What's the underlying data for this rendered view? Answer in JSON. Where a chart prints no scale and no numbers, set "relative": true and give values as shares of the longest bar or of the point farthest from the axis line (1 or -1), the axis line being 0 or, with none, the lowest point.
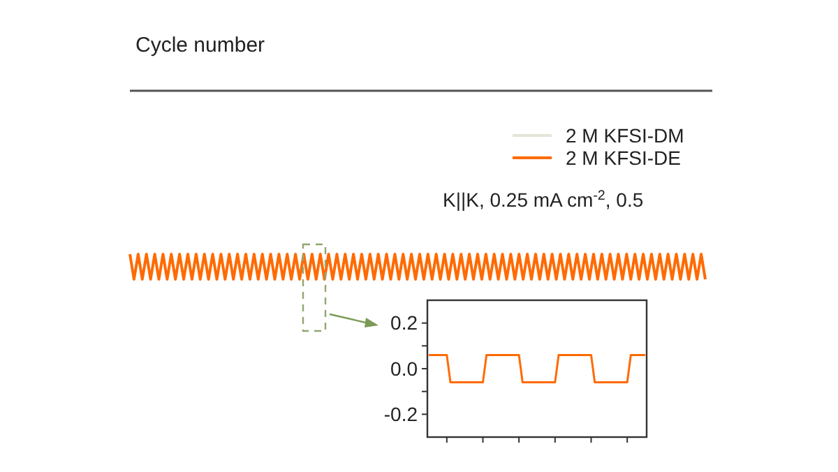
{
  "chart_data": [
    {
      "type": "other",
      "annotations": [
        "Cycle number"
      ]
    },
    {
      "type": "line",
      "relative": true,
      "legend": "top right",
      "annotations": [
        "K||K, 0.25 mA cm$^{-2}$, 0.5"
      ],
      "categories": [
        null,
        null,
        null,
        null,
        null,
        null,
        null,
        null,
        null,
        null,
        null,
        null,
        null,
        null,
        null,
        null,
        null,
        null,
        null,
        null,
        null,
        null,
        null,
        null,
        null,
        null,
        null,
        null,
        null,
        null,
        null,
        null,
        null,
        null,
        null,
        null,
        null,
        null,
        null,
        null,
        null,
        null,
        null,
        null,
        null,
        null,
        null,
        null,
        null,
        null,
        null,
        null,
        null,
        null,
        null,
        null,
        null,
        null,
        null,
        null,
        null,
        null,
        null,
        null,
        null,
        null,
        null,
        null,
        null,
        null,
        null,
        null,
        null,
        null,
        null,
        null,
        null,
        null,
        null,
        null,
        null,
        null,
        null,
        null,
        null,
        null,
        null,
        null,
        null,
        null,
        null,
        null,
        null,
        null,
        null,
        null,
        null,
        null,
        null,
        null,
        null,
        null,
        null,
        null,
        null,
        null,
        null,
        null,
        null,
        null,
        null,
        null,
        null,
        null,
        null,
        null,
        null,
        null,
        null,
        null,
        null,
        null,
        null,
        null,
        null,
        null,
        null,
        null,
        null,
        null,
        null,
        null,
        null,
        null,
        null,
        null,
        null,
        null,
        null,
        null
      ],
      "series": [
        {
          "name": "2 M KFSI-DM",
          "color": "#e2e6d8",
          "values": [
            null,
            null,
            null,
            null,
            null,
            null,
            null,
            null,
            null,
            null,
            null,
            null,
            null,
            null,
            null,
            null,
            null,
            null,
            null,
            null,
            null,
            null,
            null,
            null,
            null,
            null,
            null,
            null,
            null,
            null,
            null,
            null,
            null,
            null,
            null,
            null,
            null,
            null,
            null,
            null,
            null,
            null,
            null,
            null,
            null,
            null,
            null,
            null,
            null,
            null,
            null,
            null,
            null,
            null,
            null,
            null,
            null,
            null,
            null,
            null,
            null,
            null,
            null,
            null,
            null,
            null,
            null,
            null,
            null,
            null,
            null,
            null,
            null,
            null,
            null,
            null,
            null,
            null,
            null,
            null,
            null,
            null,
            null,
            null,
            null,
            null,
            null,
            null,
            null,
            null,
            null,
            null,
            null,
            null,
            null,
            null,
            null,
            null,
            null,
            null,
            null,
            null,
            null,
            null,
            null,
            null,
            null,
            null,
            null,
            null,
            null,
            null,
            null,
            null,
            null,
            null,
            null,
            null,
            null,
            null,
            null,
            null,
            null,
            null,
            null,
            null,
            null,
            null,
            null,
            null,
            null,
            null,
            null,
            null,
            null,
            null,
            null,
            null,
            null,
            null
          ]
        },
        {
          "name": "2 M KFSI-DE",
          "color": "#ff6a00",
          "values": [
            1,
            0,
            1,
            0,
            1,
            0,
            1,
            0,
            1,
            0,
            1,
            0,
            1,
            0,
            1,
            0,
            1,
            0,
            1,
            0,
            1,
            0,
            1,
            0,
            1,
            0,
            1,
            0,
            1,
            0,
            1,
            0,
            1,
            0,
            1,
            0,
            1,
            0,
            1,
            0,
            1,
            0,
            1,
            0,
            1,
            0,
            1,
            0,
            1,
            0,
            1,
            0,
            1,
            0,
            1,
            0,
            1,
            0,
            1,
            0,
            1,
            0,
            1,
            0,
            1,
            0,
            1,
            0,
            1,
            0,
            1,
            0,
            1,
            0,
            1,
            0,
            1,
            0,
            1,
            0,
            1,
            0,
            1,
            0,
            1,
            0,
            1,
            0,
            1,
            0,
            1,
            0,
            1,
            0,
            1,
            0,
            1,
            0,
            1,
            0,
            1,
            0,
            1,
            0,
            1,
            0,
            1,
            0,
            1,
            0,
            1,
            0,
            1,
            0,
            1,
            0,
            1,
            0,
            1,
            0,
            1,
            0,
            1,
            0,
            1,
            0,
            1,
            0,
            1,
            0,
            1,
            0,
            1,
            0,
            1,
            0,
            1,
            0,
            1,
            0
          ]
        }
      ]
    },
    {
      "type": "line",
      "ylim": [
        -0.3,
        0.3
      ],
      "yticks": [
        {
          "value": -0.2,
          "label": "-0.2"
        },
        {
          "value": -0.1,
          "label": null
        },
        {
          "value": 0,
          "label": "0.0"
        },
        {
          "value": 0.1,
          "label": null
        },
        {
          "value": 0.2,
          "label": "0.2"
        }
      ],
      "categories": [
        null,
        null,
        null,
        null,
        null,
        null,
        null,
        null,
        null,
        null,
        null,
        null,
        null,
        null,
        null,
        null,
        null,
        null,
        null,
        null,
        null,
        null,
        null,
        null,
        null,
        null,
        null,
        null,
        null,
        null,
        null,
        null,
        null,
        null,
        null,
        null,
        null,
        null,
        null,
        null,
        null,
        null,
        null,
        null,
        null,
        null,
        null,
        null,
        null,
        null,
        null,
        null,
        null,
        null,
        null,
        null,
        null,
        null,
        null,
        null,
        null
      ],
      "series": [
        {
          "color": "#ff6a00",
          "values": [
            0.06,
            0.06,
            0.06,
            0.06,
            0.06,
            0.06,
            -0.06,
            -0.06,
            -0.06,
            -0.06,
            -0.06,
            -0.06,
            -0.06,
            -0.06,
            -0.06,
            -0.06,
            0.06,
            0.06,
            0.06,
            0.06,
            0.06,
            0.06,
            0.06,
            0.06,
            0.06,
            0.06,
            -0.06,
            -0.06,
            -0.06,
            -0.06,
            -0.06,
            -0.06,
            -0.06,
            -0.06,
            -0.06,
            -0.06,
            0.06,
            0.06,
            0.06,
            0.06,
            0.06,
            0.06,
            0.06,
            0.06,
            0.06,
            0.06,
            -0.06,
            -0.06,
            -0.06,
            -0.06,
            -0.06,
            -0.06,
            -0.06,
            -0.06,
            -0.06,
            -0.06,
            0.06,
            0.06,
            0.06,
            0.06,
            0.06
          ]
        }
      ]
    }
  ]
}
